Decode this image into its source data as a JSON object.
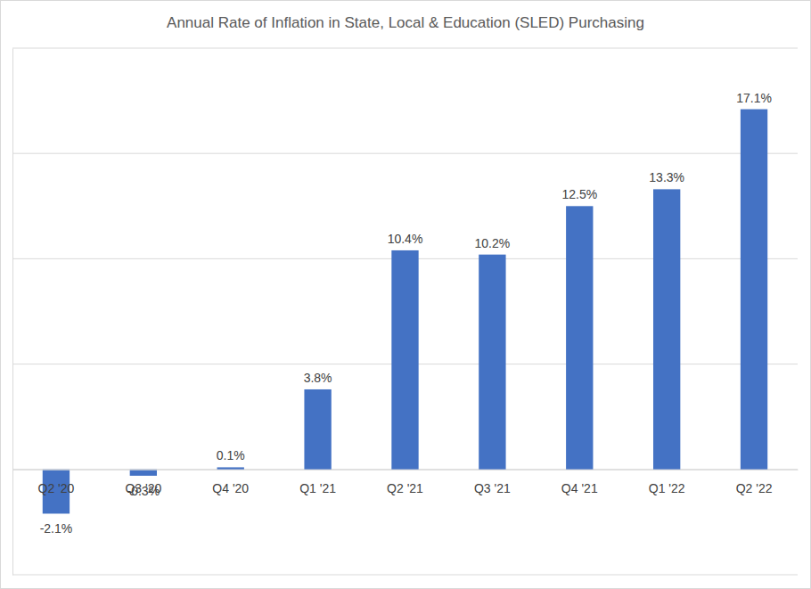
{
  "chart_data": {
    "type": "bar",
    "title": "Annual Rate of Inflation in State, Local & Education (SLED) Purchasing",
    "categories": [
      "Q2 '20",
      "Q3 '20",
      "Q4 '20",
      "Q1 '21",
      "Q2 '21",
      "Q3 '21",
      "Q4 '21",
      "Q1 '22",
      "Q2 '22"
    ],
    "values": [
      -2.1,
      -0.3,
      0.1,
      3.8,
      10.4,
      10.2,
      12.5,
      13.3,
      17.1
    ],
    "value_labels": [
      "-2.1%",
      "-0.3%",
      "0.1%",
      "3.8%",
      "10.4%",
      "10.2%",
      "12.5%",
      "13.3%",
      "17.1%"
    ],
    "color": "#4472c4",
    "ylim": [
      -5,
      20
    ],
    "yticks": [
      -5,
      0,
      5,
      10,
      15,
      20
    ],
    "grid": true,
    "data_labels": true,
    "tick_labels": "x"
  }
}
